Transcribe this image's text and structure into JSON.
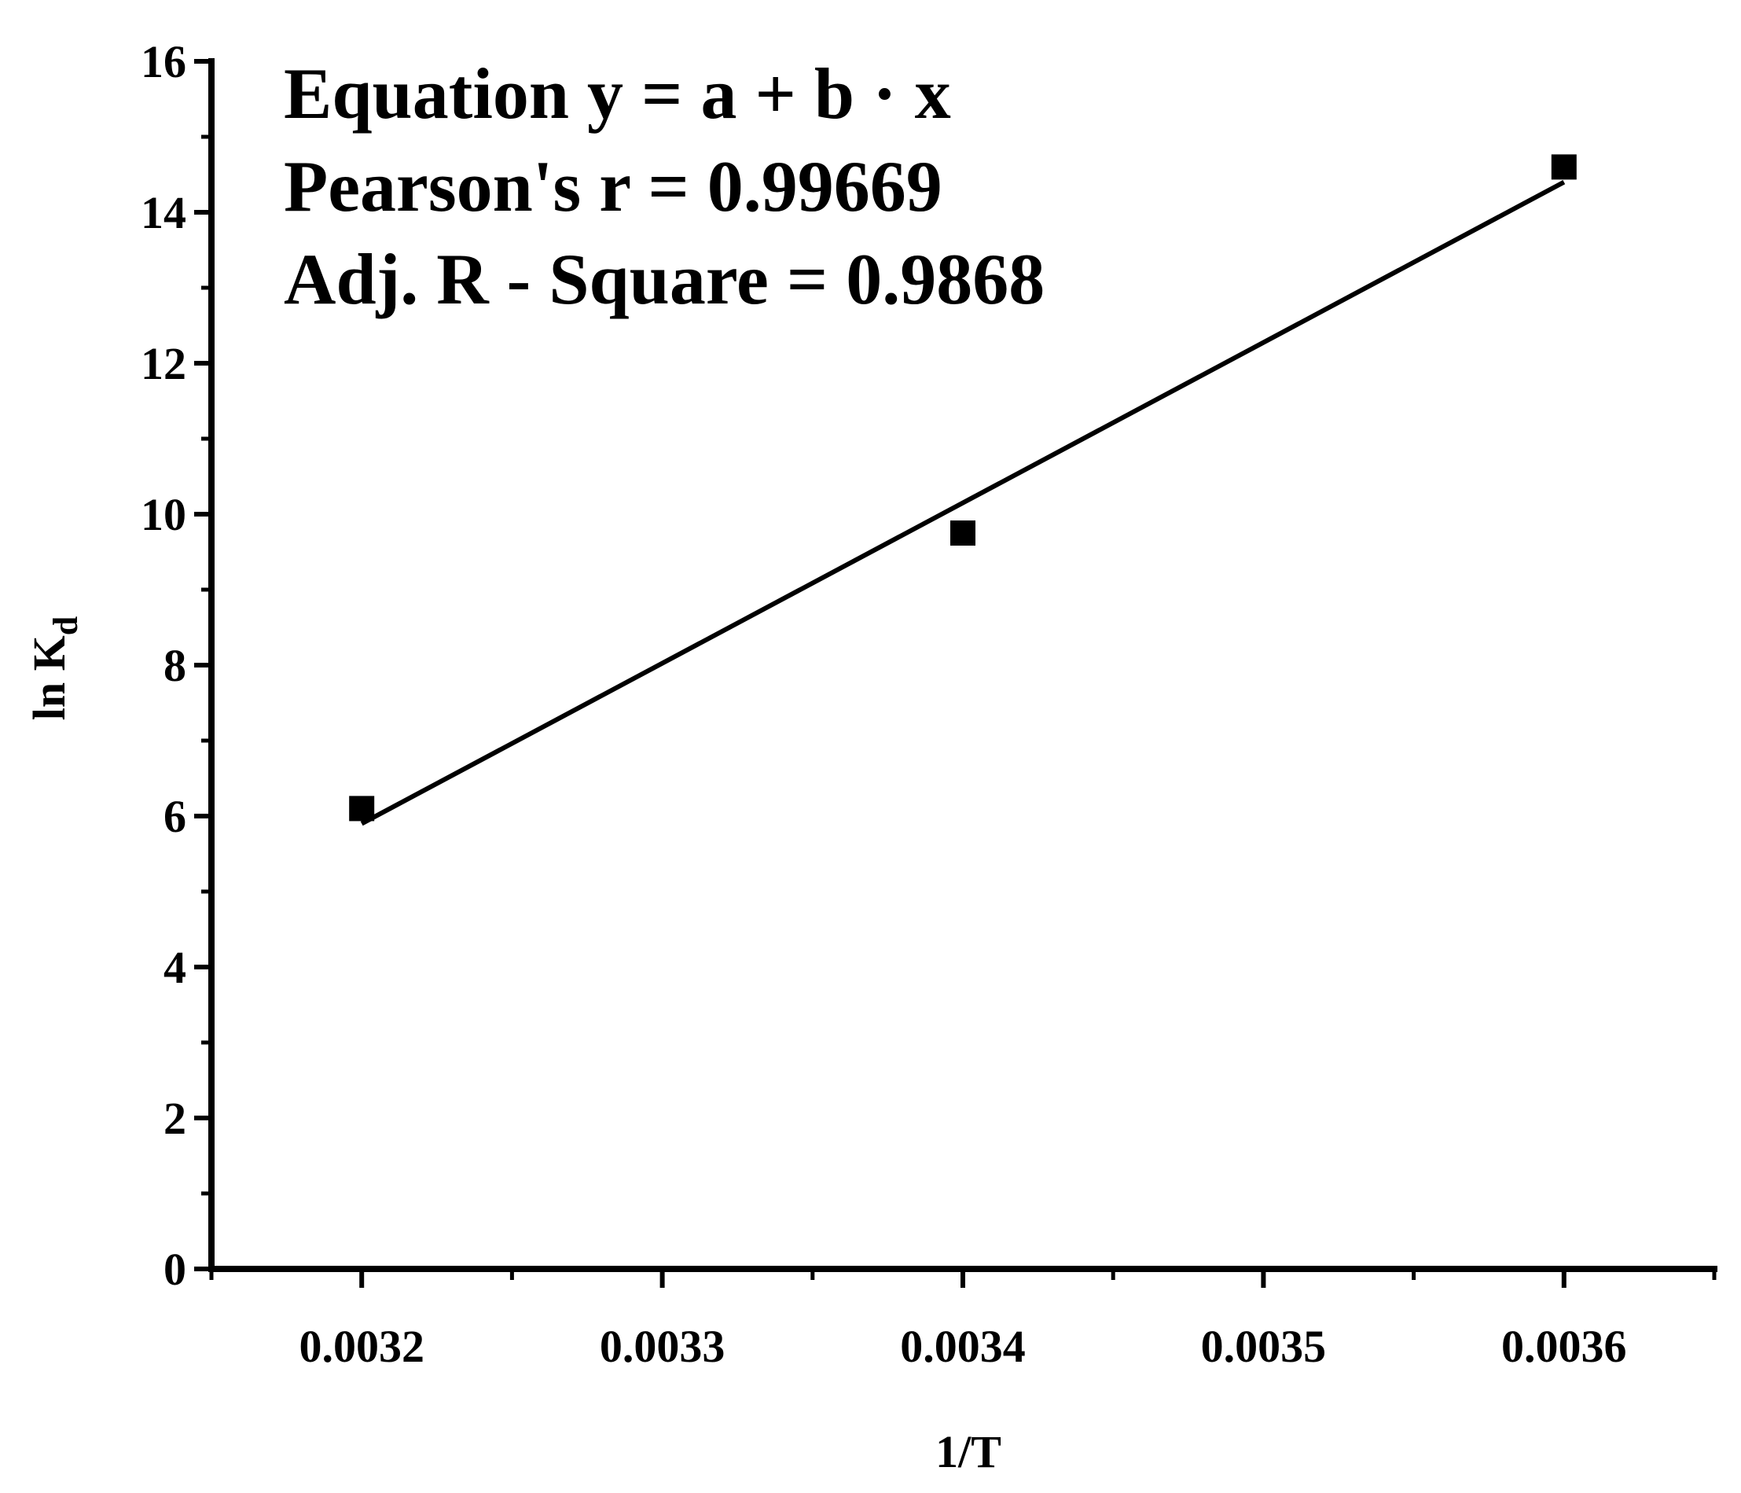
{
  "chart_data": {
    "type": "scatter",
    "x_label": "1/T",
    "y_label": "ln K",
    "y_label_subscript": "d",
    "annotations": [
      "Equation  y = a + b · x",
      "Pearson's r = 0.99669",
      "Adj. R - Square = 0.9868"
    ],
    "x": [
      0.0032,
      0.0034,
      0.0036
    ],
    "values": [
      6.1,
      9.75,
      14.6
    ],
    "color": "#000000",
    "fit_line": {
      "x": [
        0.0032,
        0.0036
      ],
      "values": [
        5.9,
        14.4
      ],
      "color": "#000000"
    },
    "xlim": [
      0.00315,
      0.00365
    ],
    "xticks": [
      0.0032,
      0.0033,
      0.0034,
      0.0035,
      0.0036
    ],
    "ylim": [
      0,
      16
    ],
    "yticks": [
      0,
      2,
      4,
      6,
      8,
      10,
      12,
      14,
      16
    ],
    "grid": false
  }
}
